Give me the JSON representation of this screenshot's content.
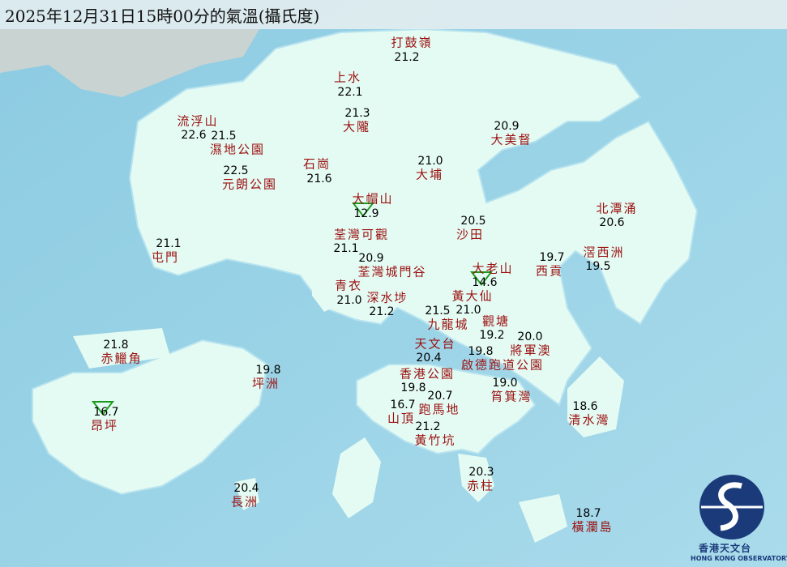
{
  "title": "2025年12月31日15時00分的氣溫(攝氏度)",
  "colors": {
    "sea": "#9fd3e6",
    "land": "#e4fbf3",
    "station_name": "#9b1010",
    "min_marker": "#1a9a1a"
  },
  "legend": {
    "min_marker_icon": "green-downward-triangle"
  },
  "logo": {
    "name_cn": "香港天文台",
    "name_en": "HONG KONG OBSERVATORY"
  },
  "stations": [
    {
      "name": "打鼓嶺",
      "temp": "21.2"
    },
    {
      "name": "上水",
      "temp": "22.1"
    },
    {
      "name": "大隴",
      "temp": "21.3"
    },
    {
      "name": "流浮山",
      "temp": "22.6"
    },
    {
      "name": "濕地公園",
      "temp": "21.5"
    },
    {
      "name": "大美督",
      "temp": "20.9"
    },
    {
      "name": "石崗",
      "temp": "21.6"
    },
    {
      "name": "元朗公園",
      "temp": "22.5"
    },
    {
      "name": "大埔",
      "temp": "21.0"
    },
    {
      "name": "大帽山",
      "temp": "12.9",
      "min": true
    },
    {
      "name": "北潭涌",
      "temp": "20.6"
    },
    {
      "name": "沙田",
      "temp": "20.5"
    },
    {
      "name": "荃灣可觀",
      "temp": "21.1"
    },
    {
      "name": "屯門",
      "temp": "21.1"
    },
    {
      "name": "西貢",
      "temp": "19.7"
    },
    {
      "name": "滘西洲",
      "temp": "19.5"
    },
    {
      "name": "荃灣城門谷",
      "temp": "20.9"
    },
    {
      "name": "大老山",
      "temp": "14.6",
      "min": true
    },
    {
      "name": "青衣",
      "temp": "21.0"
    },
    {
      "name": "深水埗",
      "temp": "21.2"
    },
    {
      "name": "黃大仙",
      "temp": "21.0"
    },
    {
      "name": "九龍城",
      "temp": "21.5"
    },
    {
      "name": "觀塘",
      "temp": "19.2"
    },
    {
      "name": "將軍澳",
      "temp": "20.0"
    },
    {
      "name": "天文台",
      "temp": "20.4"
    },
    {
      "name": "啟德跑道公園",
      "temp": "19.8"
    },
    {
      "name": "香港公園",
      "temp": "19.8"
    },
    {
      "name": "赤鱲角",
      "temp": "21.8"
    },
    {
      "name": "坪洲",
      "temp": "19.8"
    },
    {
      "name": "筲箕灣",
      "temp": "19.0"
    },
    {
      "name": "跑馬地",
      "temp": "20.7"
    },
    {
      "name": "山頂",
      "temp": "16.7"
    },
    {
      "name": "清水灣",
      "temp": "18.6"
    },
    {
      "name": "昂坪",
      "temp": "16.7",
      "min": true
    },
    {
      "name": "黃竹坑",
      "temp": "21.2"
    },
    {
      "name": "赤柱",
      "temp": "20.3"
    },
    {
      "name": "長洲",
      "temp": "20.4"
    },
    {
      "name": "橫瀾島",
      "temp": "18.7"
    }
  ]
}
